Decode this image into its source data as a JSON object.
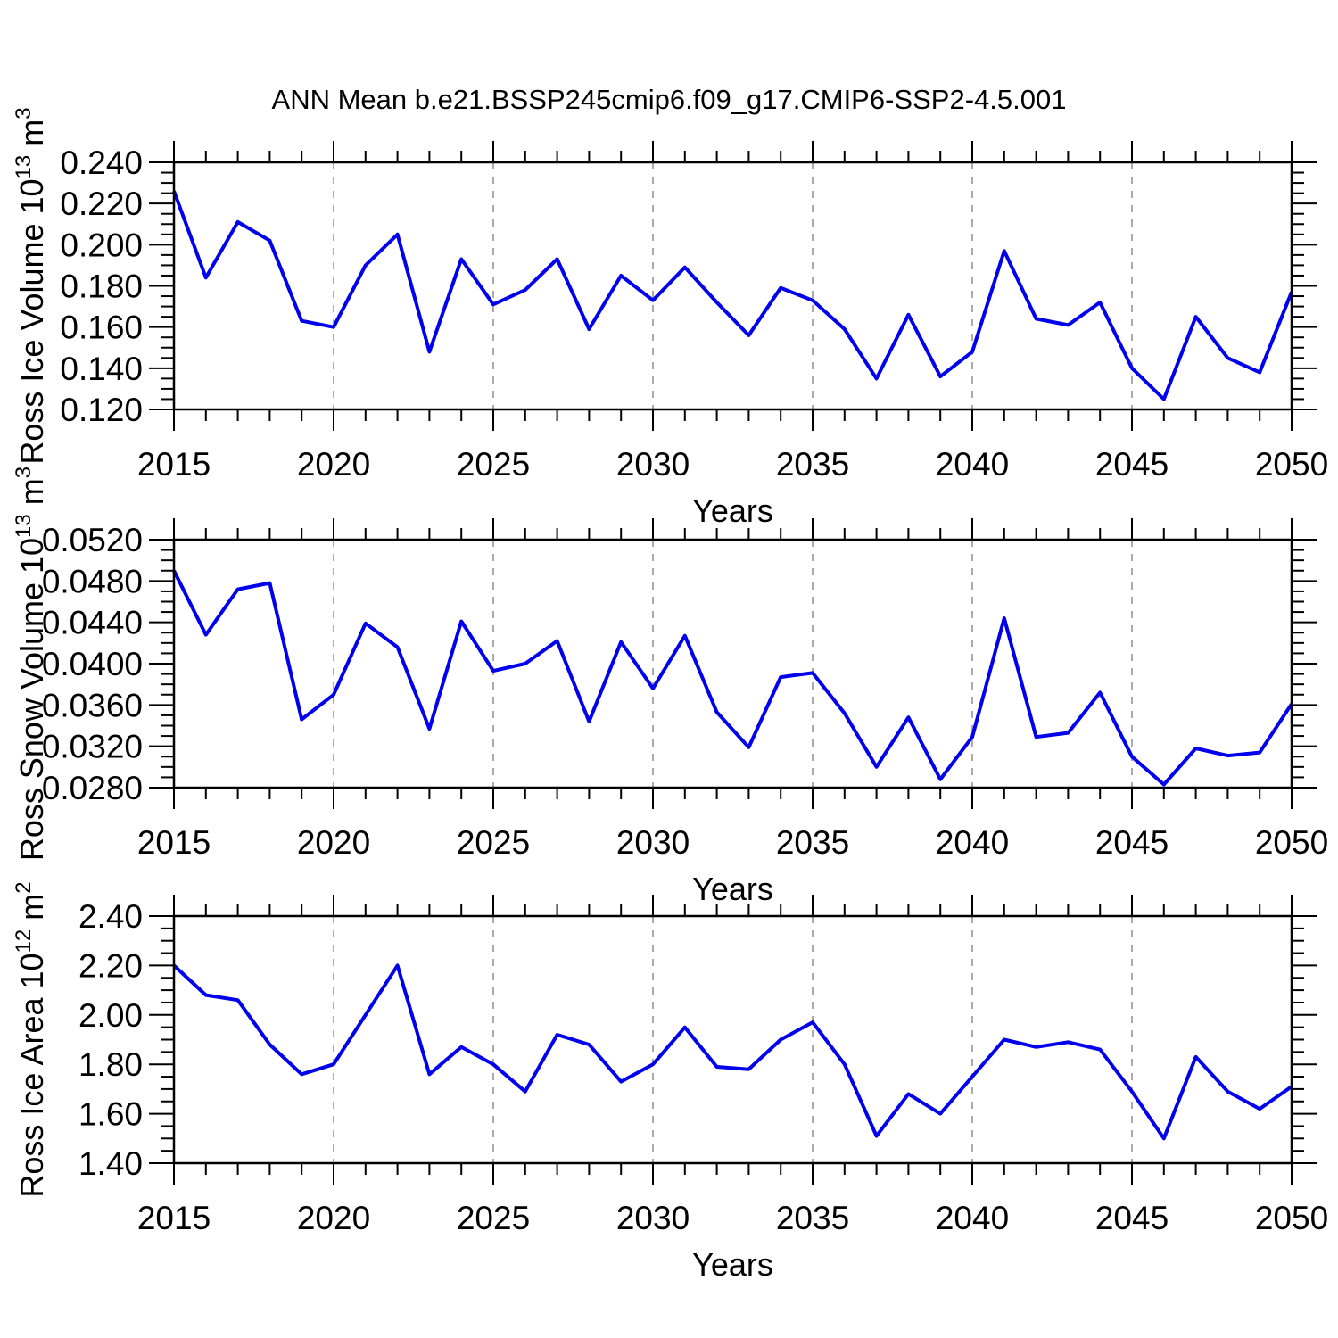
{
  "title": "ANN Mean b.e21.BSSP245cmip6.f09_g17.CMIP6-SSP2-4.5.001",
  "xlabel": "Years",
  "years": [
    2015,
    2016,
    2017,
    2018,
    2019,
    2020,
    2021,
    2022,
    2023,
    2024,
    2025,
    2026,
    2027,
    2028,
    2029,
    2030,
    2031,
    2032,
    2033,
    2034,
    2035,
    2036,
    2037,
    2038,
    2039,
    2040,
    2041,
    2042,
    2043,
    2044,
    2045,
    2046,
    2047,
    2048,
    2049,
    2050
  ],
  "xtick_labels": [
    "2015",
    "2020",
    "2025",
    "2030",
    "2035",
    "2040",
    "2045",
    "2050"
  ],
  "grid_years": [
    2020,
    2025,
    2030,
    2035,
    2040,
    2045
  ],
  "colors": {
    "line": "#0000EE",
    "grid": "#ABABAB",
    "axis": "#000000",
    "background": "#FFFFFF"
  },
  "chart_data": [
    {
      "type": "line",
      "name": "ross-ice-volume",
      "ylabel": "Ross Ice Volume 10^13 m^3",
      "ylabel_segments": [
        {
          "t": "Ross Ice Volume 10"
        },
        {
          "t": "13",
          "sup": true
        },
        {
          "t": " m"
        },
        {
          "t": "3",
          "sup": true
        }
      ],
      "xlabel": "Years",
      "xlim": [
        2015,
        2050
      ],
      "ylim": [
        0.12,
        0.24
      ],
      "ytick_step": 0.02,
      "ytick_minor_step": 0.005,
      "ytick_labels": [
        "0.120",
        "0.140",
        "0.160",
        "0.180",
        "0.200",
        "0.220",
        "0.240"
      ],
      "values": [
        0.226,
        0.184,
        0.211,
        0.202,
        0.163,
        0.16,
        0.19,
        0.205,
        0.148,
        0.193,
        0.171,
        0.178,
        0.193,
        0.159,
        0.185,
        0.173,
        0.189,
        0.172,
        0.156,
        0.179,
        0.173,
        0.159,
        0.135,
        0.166,
        0.136,
        0.148,
        0.197,
        0.164,
        0.161,
        0.172,
        0.14,
        0.125,
        0.165,
        0.145,
        0.138,
        0.177
      ]
    },
    {
      "type": "line",
      "name": "ross-snow-volume",
      "ylabel": "Ross Snow Volume 10^13 m^3",
      "ylabel_segments": [
        {
          "t": "Ross Snow Volume 10"
        },
        {
          "t": "13",
          "sup": true
        },
        {
          "t": " m"
        },
        {
          "t": "3",
          "sup": true
        }
      ],
      "xlabel": "Years",
      "xlim": [
        2015,
        2050
      ],
      "ylim": [
        0.028,
        0.052
      ],
      "ytick_step": 0.004,
      "ytick_minor_step": 0.001,
      "ytick_labels": [
        "0.0280",
        "0.0320",
        "0.0360",
        "0.0400",
        "0.0440",
        "0.0480",
        "0.0520"
      ],
      "values": [
        0.049,
        0.0428,
        0.0472,
        0.0478,
        0.0346,
        0.037,
        0.0439,
        0.0416,
        0.0337,
        0.0441,
        0.0393,
        0.04,
        0.0422,
        0.0344,
        0.0421,
        0.0376,
        0.0427,
        0.0353,
        0.0319,
        0.0387,
        0.0391,
        0.0352,
        0.03,
        0.0348,
        0.0288,
        0.0329,
        0.0444,
        0.0329,
        0.0333,
        0.0372,
        0.031,
        0.0283,
        0.0318,
        0.0311,
        0.0314,
        0.0361
      ]
    },
    {
      "type": "line",
      "name": "ross-ice-area",
      "ylabel": "Ross Ice Area 10^12 m^2",
      "ylabel_segments": [
        {
          "t": "Ross Ice Area 10"
        },
        {
          "t": "12",
          "sup": true
        },
        {
          "t": " m"
        },
        {
          "t": "2",
          "sup": true
        }
      ],
      "xlabel": "Years",
      "xlim": [
        2015,
        2050
      ],
      "ylim": [
        1.4,
        2.4
      ],
      "ytick_step": 0.2,
      "ytick_minor_step": 0.05,
      "ytick_labels": [
        "1.40",
        "1.60",
        "1.80",
        "2.00",
        "2.20",
        "2.40"
      ],
      "values": [
        2.2,
        2.08,
        2.06,
        1.88,
        1.76,
        1.8,
        2.0,
        2.2,
        1.76,
        1.87,
        1.8,
        1.69,
        1.92,
        1.88,
        1.73,
        1.8,
        1.95,
        1.79,
        1.78,
        1.9,
        1.97,
        1.8,
        1.51,
        1.68,
        1.6,
        1.75,
        1.9,
        1.87,
        1.89,
        1.86,
        1.69,
        1.5,
        1.83,
        1.69,
        1.62,
        1.71
      ]
    }
  ]
}
